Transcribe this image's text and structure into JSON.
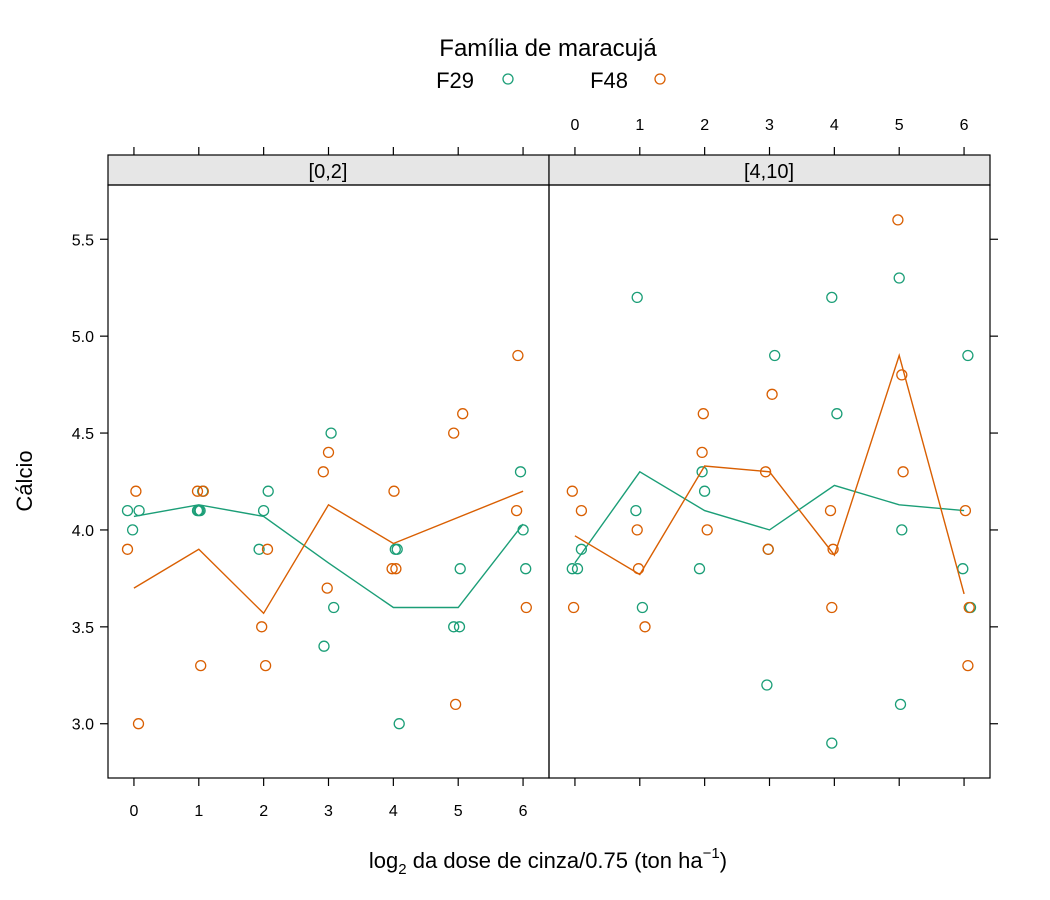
{
  "chart_data": {
    "type": "scatter",
    "title": "",
    "legend": {
      "title": "Família de maracujá",
      "placement": "top",
      "entries": [
        {
          "name": "F29",
          "color": "#1b9e77",
          "marker": "open-circle"
        },
        {
          "name": "F48",
          "color": "#d95f02",
          "marker": "open-circle"
        }
      ]
    },
    "xlabel": {
      "base": "log",
      "sub": "2",
      "main": " da dose de cinza/0.75 (ton ha",
      "sup": "−1",
      "close": ")"
    },
    "ylabel": "Cálcio",
    "xlim": [
      -0.4,
      6.4
    ],
    "ylim": [
      2.72,
      5.78
    ],
    "x_ticks": [
      "0",
      "1",
      "2",
      "3",
      "4",
      "5",
      "6"
    ],
    "y_ticks": [
      "3.0",
      "3.5",
      "4.0",
      "4.5",
      "5.0",
      "5.5"
    ],
    "grid": false,
    "panels": [
      {
        "strip": "[0,2]",
        "series": [
          {
            "name": "F29",
            "points": [
              [
                -0.1,
                4.1
              ],
              [
                0.08,
                4.1
              ],
              [
                -0.02,
                4.0
              ],
              [
                0.98,
                4.1
              ],
              [
                1.0,
                4.1
              ],
              [
                1.02,
                4.1
              ],
              [
                1.06,
                4.2
              ],
              [
                1.93,
                3.9
              ],
              [
                2.0,
                4.1
              ],
              [
                2.07,
                4.2
              ],
              [
                2.93,
                3.4
              ],
              [
                3.04,
                4.5
              ],
              [
                3.08,
                3.6
              ],
              [
                4.03,
                3.9
              ],
              [
                4.06,
                3.9
              ],
              [
                4.09,
                3.0
              ],
              [
                4.93,
                3.5
              ],
              [
                5.02,
                3.5
              ],
              [
                5.03,
                3.8
              ],
              [
                5.96,
                4.3
              ],
              [
                6.0,
                4.0
              ],
              [
                6.04,
                3.8
              ]
            ],
            "means": [
              [
                0,
                4.07
              ],
              [
                1,
                4.13
              ],
              [
                2,
                4.07
              ],
              [
                3,
                3.83
              ],
              [
                4,
                3.6
              ],
              [
                5,
                3.6
              ],
              [
                6,
                4.03
              ]
            ]
          },
          {
            "name": "F48",
            "points": [
              [
                -0.1,
                3.9
              ],
              [
                0.03,
                4.2
              ],
              [
                0.07,
                3.0
              ],
              [
                0.98,
                4.2
              ],
              [
                1.03,
                3.3
              ],
              [
                1.07,
                4.2
              ],
              [
                1.97,
                3.5
              ],
              [
                2.03,
                3.3
              ],
              [
                2.06,
                3.9
              ],
              [
                2.92,
                4.3
              ],
              [
                2.98,
                3.7
              ],
              [
                3.0,
                4.4
              ],
              [
                3.98,
                3.8
              ],
              [
                4.01,
                4.2
              ],
              [
                4.04,
                3.8
              ],
              [
                4.93,
                4.5
              ],
              [
                4.96,
                3.1
              ],
              [
                5.07,
                4.6
              ],
              [
                5.9,
                4.1
              ],
              [
                5.92,
                4.9
              ],
              [
                6.05,
                3.6
              ]
            ],
            "means": [
              [
                0,
                3.7
              ],
              [
                1,
                3.9
              ],
              [
                2,
                3.57
              ],
              [
                3,
                4.13
              ],
              [
                4,
                3.93
              ],
              [
                6,
                4.2
              ]
            ]
          }
        ]
      },
      {
        "strip": "[4,10]",
        "series": [
          {
            "name": "F29",
            "points": [
              [
                -0.04,
                3.8
              ],
              [
                0.04,
                3.8
              ],
              [
                0.1,
                3.9
              ],
              [
                0.94,
                4.1
              ],
              [
                0.96,
                5.2
              ],
              [
                1.04,
                3.6
              ],
              [
                1.92,
                3.8
              ],
              [
                1.96,
                4.3
              ],
              [
                2.0,
                4.2
              ],
              [
                2.96,
                3.2
              ],
              [
                2.98,
                3.9
              ],
              [
                3.08,
                4.9
              ],
              [
                3.96,
                5.2
              ],
              [
                3.96,
                2.9
              ],
              [
                4.04,
                4.6
              ],
              [
                5.0,
                5.3
              ],
              [
                5.02,
                3.1
              ],
              [
                5.04,
                4.0
              ],
              [
                5.98,
                3.8
              ],
              [
                6.06,
                4.9
              ],
              [
                6.1,
                3.6
              ]
            ],
            "means": [
              [
                0,
                3.83
              ],
              [
                1,
                4.3
              ],
              [
                2,
                4.1
              ],
              [
                3,
                4.0
              ],
              [
                4,
                4.23
              ],
              [
                5,
                4.13
              ],
              [
                6,
                4.1
              ]
            ]
          },
          {
            "name": "F48",
            "points": [
              [
                -0.04,
                4.2
              ],
              [
                -0.02,
                3.6
              ],
              [
                0.1,
                4.1
              ],
              [
                0.96,
                4.0
              ],
              [
                0.98,
                3.8
              ],
              [
                1.08,
                3.5
              ],
              [
                1.96,
                4.4
              ],
              [
                1.98,
                4.6
              ],
              [
                2.04,
                4.0
              ],
              [
                2.94,
                4.3
              ],
              [
                2.98,
                3.9
              ],
              [
                3.04,
                4.7
              ],
              [
                3.94,
                4.1
              ],
              [
                3.96,
                3.6
              ],
              [
                3.98,
                3.9
              ],
              [
                4.98,
                5.6
              ],
              [
                5.04,
                4.8
              ],
              [
                5.06,
                4.3
              ],
              [
                6.02,
                4.1
              ],
              [
                6.06,
                3.3
              ],
              [
                6.08,
                3.6
              ]
            ],
            "means": [
              [
                0,
                3.97
              ],
              [
                1,
                3.77
              ],
              [
                2,
                4.33
              ],
              [
                3,
                4.3
              ],
              [
                4,
                3.87
              ],
              [
                5,
                4.9
              ],
              [
                6,
                3.67
              ]
            ]
          }
        ]
      }
    ]
  }
}
